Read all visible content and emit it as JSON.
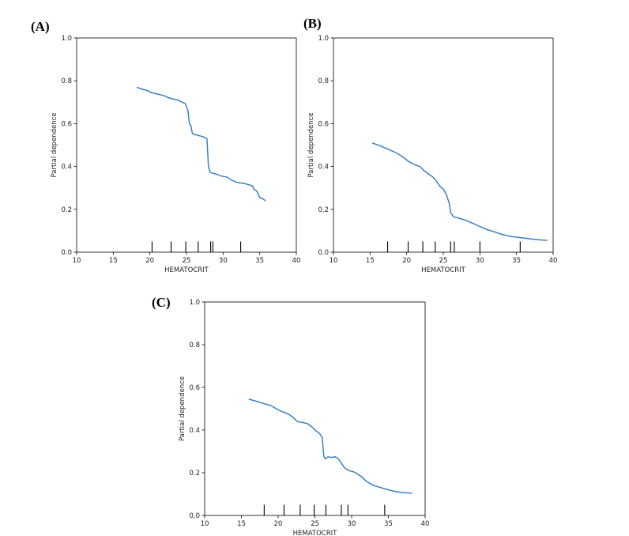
{
  "chart_data": [
    {
      "type": "line",
      "panel_label": "(A)",
      "xlabel": "HEMATOCRIT",
      "ylabel": "Partial dependence",
      "xlim": [
        10,
        40
      ],
      "ylim": [
        0.0,
        1.0
      ],
      "xticks": [
        10,
        15,
        20,
        25,
        30,
        35,
        40
      ],
      "xtick_labels": [
        "10",
        "15",
        "20",
        "25",
        "30",
        "35",
        "40"
      ],
      "yticks": [
        0.0,
        0.2,
        0.4,
        0.6,
        0.8,
        1.0
      ],
      "ytick_labels": [
        "0.0",
        "0.2",
        "0.4",
        "0.6",
        "0.8",
        "1.0"
      ],
      "grid": false,
      "x": [
        18.2,
        19.0,
        19.6,
        20.2,
        20.8,
        21.4,
        22.0,
        22.6,
        23.2,
        23.8,
        24.4,
        24.8,
        25.0,
        25.2,
        25.4,
        25.6,
        25.8,
        26.0,
        26.6,
        27.2,
        27.8,
        28.0,
        28.2,
        28.4,
        29.0,
        29.8,
        30.6,
        31.2,
        32.0,
        33.0,
        34.0,
        34.2,
        34.6,
        35.0,
        35.4,
        35.8
      ],
      "y": [
        0.77,
        0.76,
        0.755,
        0.745,
        0.74,
        0.735,
        0.73,
        0.72,
        0.715,
        0.71,
        0.7,
        0.695,
        0.68,
        0.66,
        0.6,
        0.59,
        0.555,
        0.55,
        0.545,
        0.54,
        0.53,
        0.4,
        0.375,
        0.37,
        0.365,
        0.355,
        0.35,
        0.335,
        0.325,
        0.32,
        0.31,
        0.295,
        0.285,
        0.255,
        0.25,
        0.24
      ],
      "rug": [
        20.3,
        22.9,
        24.9,
        26.6,
        28.3,
        28.6,
        32.4
      ]
    },
    {
      "type": "line",
      "panel_label": "(B)",
      "xlabel": "HEMATOCRIT",
      "ylabel": "Partial dependence",
      "xlim": [
        10,
        40
      ],
      "ylim": [
        0.0,
        1.0
      ],
      "xticks": [
        10,
        15,
        20,
        25,
        30,
        35,
        40
      ],
      "xtick_labels": [
        "10",
        "15",
        "20",
        "25",
        "30",
        "35",
        "40"
      ],
      "yticks": [
        0.0,
        0.2,
        0.4,
        0.6,
        0.8,
        1.0
      ],
      "ytick_labels": [
        "0.0",
        "0.2",
        "0.4",
        "0.6",
        "0.8",
        "1.0"
      ],
      "grid": false,
      "x": [
        15.3,
        16.5,
        17.5,
        18.5,
        19.5,
        20.2,
        21.0,
        21.8,
        22.4,
        23.0,
        23.6,
        24.0,
        24.6,
        25.0,
        25.4,
        25.8,
        26.0,
        26.4,
        27.0,
        28.0,
        29.0,
        30.0,
        31.0,
        32.0,
        33.0,
        34.0,
        35.0,
        36.0,
        37.0,
        38.0,
        39.2
      ],
      "y": [
        0.51,
        0.495,
        0.48,
        0.465,
        0.445,
        0.425,
        0.41,
        0.4,
        0.38,
        0.365,
        0.35,
        0.335,
        0.305,
        0.295,
        0.27,
        0.23,
        0.185,
        0.165,
        0.16,
        0.15,
        0.135,
        0.12,
        0.105,
        0.095,
        0.083,
        0.075,
        0.07,
        0.066,
        0.062,
        0.058,
        0.055
      ],
      "rug": [
        17.4,
        20.2,
        22.2,
        23.9,
        26.0,
        26.5,
        30.0,
        35.5
      ]
    },
    {
      "type": "line",
      "panel_label": "(C)",
      "xlabel": "HEMATOCRIT",
      "ylabel": "Partial dependence",
      "xlim": [
        10,
        40
      ],
      "ylim": [
        0.0,
        1.0
      ],
      "xticks": [
        10,
        15,
        20,
        25,
        30,
        35,
        40
      ],
      "xtick_labels": [
        "10",
        "15",
        "20",
        "25",
        "30",
        "35",
        "40"
      ],
      "yticks": [
        0.0,
        0.2,
        0.4,
        0.6,
        0.8,
        1.0
      ],
      "ytick_labels": [
        "0.0",
        "0.2",
        "0.4",
        "0.6",
        "0.8",
        "1.0"
      ],
      "grid": false,
      "x": [
        16.0,
        17.0,
        18.0,
        19.0,
        20.0,
        20.6,
        21.4,
        22.0,
        22.6,
        23.4,
        24.0,
        24.6,
        25.2,
        25.6,
        26.0,
        26.2,
        26.4,
        26.8,
        27.2,
        27.8,
        28.2,
        28.6,
        29.0,
        29.6,
        30.2,
        30.8,
        31.4,
        32.0,
        33.0,
        34.0,
        35.0,
        36.0,
        37.0,
        38.2
      ],
      "y": [
        0.545,
        0.535,
        0.525,
        0.515,
        0.495,
        0.485,
        0.475,
        0.46,
        0.44,
        0.435,
        0.43,
        0.415,
        0.395,
        0.385,
        0.365,
        0.28,
        0.265,
        0.275,
        0.272,
        0.275,
        0.265,
        0.245,
        0.225,
        0.21,
        0.205,
        0.195,
        0.18,
        0.16,
        0.14,
        0.13,
        0.12,
        0.112,
        0.107,
        0.104
      ],
      "rug": [
        18.1,
        20.8,
        23.0,
        24.9,
        26.5,
        28.6,
        29.5,
        34.5
      ]
    }
  ]
}
